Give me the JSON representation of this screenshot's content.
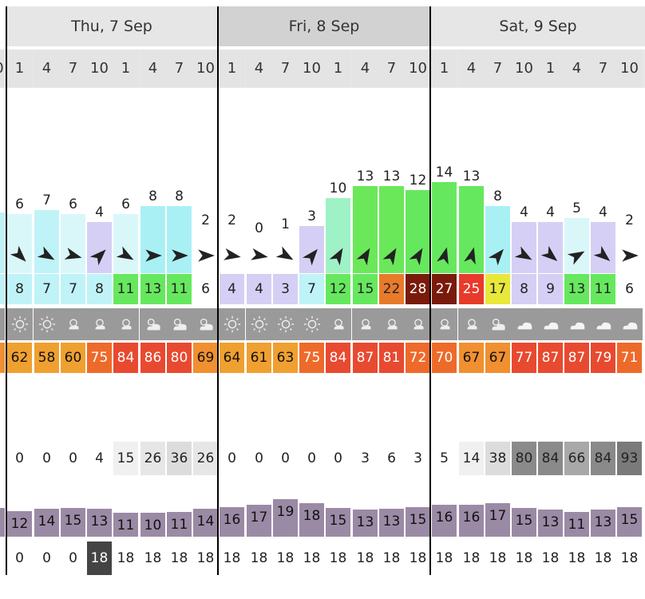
{
  "days": [
    {
      "label": "Thu, 7 Sep",
      "bg": "#e6e6e6"
    },
    {
      "label": "Fri, 8 Sep",
      "bg": "#d2d2d2"
    },
    {
      "label": "Sat, 9 Sep",
      "bg": "#e6e6e6"
    }
  ],
  "hours": [
    "1",
    "4",
    "7",
    "10",
    "1",
    "4",
    "7",
    "10",
    "1",
    "4",
    "7",
    "10",
    "1",
    "4",
    "7",
    "10",
    "1",
    "4",
    "7",
    "10",
    "1",
    "4",
    "7",
    "10"
  ],
  "first_partial_hour": "0",
  "wind_speed": {
    "values": [
      "6",
      "7",
      "6",
      "4",
      "6",
      "8",
      "8",
      "2",
      "2",
      "0",
      "1",
      "3",
      "10",
      "13",
      "13",
      "12",
      "14",
      "13",
      "8",
      "4",
      "4",
      "5",
      "4",
      "2"
    ],
    "partial_left_value": "",
    "colors": [
      "#d9f7f9",
      "#bff3f8",
      "#d9f7f9",
      "#d6cff5",
      "#d9f7f9",
      "#a9f0f5",
      "#a9f0f5",
      "#ffffff",
      "#ffffff",
      "#ffffff",
      "#ffffff",
      "#d6cff5",
      "#9ff1c6",
      "#6be85a",
      "#6be85a",
      "#66e85e",
      "#66e85e",
      "#66e85e",
      "#a9f0f5",
      "#d6cff5",
      "#d6cff5",
      "#d9f7f9",
      "#d6cff5",
      "#ffffff"
    ],
    "max_display": 16
  },
  "wind_dir_deg": [
    135,
    120,
    105,
    45,
    120,
    90,
    90,
    90,
    100,
    100,
    120,
    40,
    30,
    30,
    30,
    30,
    15,
    15,
    40,
    120,
    130,
    60,
    130,
    90
  ],
  "gusts": {
    "values": [
      "8",
      "7",
      "7",
      "8",
      "11",
      "13",
      "11",
      "6",
      "4",
      "4",
      "3",
      "7",
      "12",
      "15",
      "22",
      "28",
      "27",
      "25",
      "17",
      "8",
      "9",
      "13",
      "11",
      "6"
    ],
    "colors": [
      "#bff3f8",
      "#bff3f8",
      "#bff3f8",
      "#bff3f8",
      "#66e85e",
      "#66e85e",
      "#66e85e",
      "#ffffff",
      "#d6cff5",
      "#d6cff5",
      "#d6cff5",
      "#bff3f8",
      "#66e85e",
      "#66e85e",
      "#e87b2a",
      "#7a1a0a",
      "#7a1a0a",
      "#e83a2a",
      "#e8e83a",
      "#d6cff5",
      "#d6cff5",
      "#66e85e",
      "#66e85e",
      "#ffffff"
    ],
    "text_colors": [
      "#222",
      "#222",
      "#222",
      "#222",
      "#222",
      "#222",
      "#222",
      "#222",
      "#222",
      "#222",
      "#222",
      "#222",
      "#222",
      "#222",
      "#222",
      "#ffffff",
      "#ffffff",
      "#ffffff",
      "#222",
      "#222",
      "#222",
      "#222",
      "#222",
      "#222"
    ]
  },
  "sky_icons": [
    "sun",
    "sun",
    "partly-sunny",
    "partly-sunny",
    "partly-sunny",
    "partly-cloudy",
    "partly-cloudy",
    "partly-cloudy",
    "sun",
    "sun",
    "sun",
    "sun",
    "partly-sunny",
    "partly-sunny",
    "partly-sunny",
    "partly-sunny",
    "partly-sunny",
    "partly-sunny",
    "partly-cloudy",
    "cloud",
    "cloud",
    "cloud",
    "cloud",
    "cloud"
  ],
  "temperature": {
    "partial_left_value": "",
    "values": [
      "62",
      "58",
      "60",
      "75",
      "84",
      "86",
      "80",
      "69",
      "64",
      "61",
      "63",
      "75",
      "84",
      "87",
      "81",
      "72",
      "70",
      "67",
      "67",
      "77",
      "87",
      "87",
      "79",
      "71"
    ],
    "colors": [
      "#f0a030",
      "#f0a030",
      "#f0a030",
      "#ee6a2a",
      "#e84a30",
      "#e84a30",
      "#e84a30",
      "#f09030",
      "#f0a030",
      "#f0a030",
      "#f0a030",
      "#ee6a2a",
      "#e84a30",
      "#e84a30",
      "#e84a30",
      "#ee6a2a",
      "#ee6a2a",
      "#f09030",
      "#f09030",
      "#e84a30",
      "#e84a30",
      "#e84a30",
      "#e84a30",
      "#ee6a2a"
    ],
    "partial_left_color": "#f09030",
    "text_colors": [
      "#111",
      "#111",
      "#111",
      "#fff",
      "#fff",
      "#fff",
      "#fff",
      "#111",
      "#111",
      "#111",
      "#111",
      "#fff",
      "#fff",
      "#fff",
      "#fff",
      "#fff",
      "#fff",
      "#111",
      "#111",
      "#fff",
      "#fff",
      "#fff",
      "#fff",
      "#fff"
    ]
  },
  "cloud_cover": {
    "values": [
      "0",
      "0",
      "0",
      "4",
      "15",
      "26",
      "36",
      "26",
      "0",
      "0",
      "0",
      "0",
      "0",
      "3",
      "6",
      "3",
      "5",
      "14",
      "38",
      "80",
      "84",
      "66",
      "84",
      "93"
    ],
    "colors": [
      "#ffffff",
      "#ffffff",
      "#ffffff",
      "#ffffff",
      "#f0f0f0",
      "#e6e6e6",
      "#dcdcdc",
      "#e6e6e6",
      "#ffffff",
      "#ffffff",
      "#ffffff",
      "#ffffff",
      "#ffffff",
      "#ffffff",
      "#ffffff",
      "#ffffff",
      "#ffffff",
      "#f0f0f0",
      "#dcdcdc",
      "#8a8a8a",
      "#8a8a8a",
      "#a8a8a8",
      "#8a8a8a",
      "#7a7a7a"
    ]
  },
  "wave_period": {
    "partial_left_value": "",
    "values": [
      "12",
      "14",
      "15",
      "13",
      "11",
      "10",
      "11",
      "14",
      "16",
      "17",
      "19",
      "18",
      "15",
      "13",
      "13",
      "15",
      "16",
      "16",
      "17",
      "15",
      "13",
      "11",
      "13",
      "15"
    ],
    "heights": [
      0.65,
      0.7,
      0.72,
      0.7,
      0.6,
      0.6,
      0.62,
      0.7,
      0.75,
      0.8,
      0.95,
      0.85,
      0.72,
      0.68,
      0.7,
      0.75,
      0.8,
      0.8,
      0.85,
      0.72,
      0.68,
      0.62,
      0.68,
      0.75
    ]
  },
  "wave_height": {
    "partial_left_value": "",
    "values": [
      "0",
      "0",
      "0",
      "18",
      "18",
      "18",
      "18",
      "18",
      "18",
      "18",
      "18",
      "18",
      "18",
      "18",
      "18",
      "18",
      "18",
      "18",
      "18",
      "18",
      "18",
      "18",
      "18",
      "18"
    ],
    "highlight_index": 3,
    "highlight_color": "#444444"
  }
}
